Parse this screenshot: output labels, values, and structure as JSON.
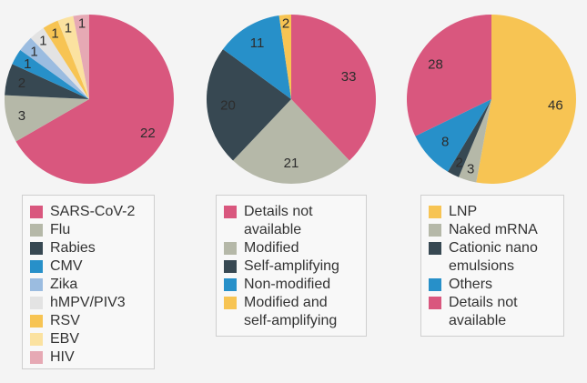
{
  "chart_data": [
    {
      "type": "pie",
      "title": "",
      "categories": [
        "SARS-CoV-2",
        "Flu",
        "Rabies",
        "CMV",
        "Zika",
        "hMPV/PIV3",
        "RSV",
        "EBV",
        "HIV"
      ],
      "values": [
        22,
        3,
        2,
        1,
        1,
        1,
        1,
        1,
        1
      ],
      "colors": [
        "#d9577e",
        "#b5b8a8",
        "#374852",
        "#2790c9",
        "#9bbce0",
        "#e3e3e3",
        "#f7c453",
        "#fbe2a0",
        "#e6a9b4"
      ]
    },
    {
      "type": "pie",
      "title": "",
      "categories": [
        "Details not available",
        "Modified",
        "Self-amplifying",
        "Non-modified",
        "Modified and self-amplifying"
      ],
      "legend_lines": [
        [
          "Details not",
          "available"
        ],
        [
          "Modified"
        ],
        [
          "Self-amplifying"
        ],
        [
          "Non-modified"
        ],
        [
          "Modified and",
          "self-amplifying"
        ]
      ],
      "values": [
        33,
        21,
        20,
        11,
        2
      ],
      "colors": [
        "#d9577e",
        "#b5b8a8",
        "#374852",
        "#2790c9",
        "#f7c453"
      ]
    },
    {
      "type": "pie",
      "title": "",
      "categories": [
        "LNP",
        "Naked mRNA",
        "Cationic nano emulsions",
        "Others",
        "Details not available"
      ],
      "legend_lines": [
        [
          "LNP"
        ],
        [
          "Naked mRNA"
        ],
        [
          "Cationic nano",
          "emulsions"
        ],
        [
          "Others"
        ],
        [
          "Details not",
          "available"
        ]
      ],
      "values": [
        46,
        3,
        2,
        8,
        28
      ],
      "colors": [
        "#f7c453",
        "#b5b8a8",
        "#374852",
        "#2790c9",
        "#d9577e"
      ]
    }
  ]
}
